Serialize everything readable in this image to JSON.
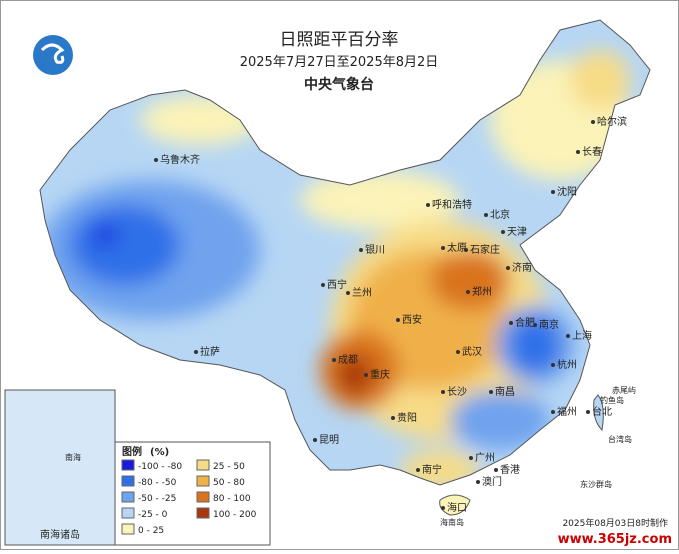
{
  "header": {
    "title": "日照距平百分率",
    "subtitle": "2025年7月27日至2025年8月2日",
    "agency": "中央气象台"
  },
  "cities": [
    "乌鲁木齐",
    "呼和浩特",
    "北京",
    "天津",
    "哈尔滨",
    "长春",
    "沈阳",
    "银川",
    "太原",
    "石家庄",
    "济南",
    "西宁",
    "兰州",
    "郑州",
    "西安",
    "合肥",
    "南京",
    "上海",
    "拉萨",
    "成都",
    "武汉",
    "重庆",
    "杭州",
    "长沙",
    "南昌",
    "贵阳",
    "福州",
    "台北",
    "昆明",
    "南宁",
    "广州",
    "香港",
    "澳门",
    "海口"
  ],
  "islands": [
    "赤尾屿",
    "钓鱼岛",
    "台湾岛",
    "东沙群岛",
    "海南岛",
    "南海"
  ],
  "inset": {
    "label": "南海诸岛"
  },
  "legend": {
    "title": "图例",
    "unit": "(%)",
    "items": [
      {
        "label": "-100 - -80",
        "color": "#1a1adf"
      },
      {
        "label": "-80 - -50",
        "color": "#2f6fe8"
      },
      {
        "label": "-50 - -25",
        "color": "#6fa3ee"
      },
      {
        "label": "-25 - 0",
        "color": "#b6d6f4"
      },
      {
        "label": "0 - 25",
        "color": "#fbf3b8"
      },
      {
        "label": "25 - 50",
        "color": "#f7dc87"
      },
      {
        "label": "50 - 80",
        "color": "#f0b04a"
      },
      {
        "label": "80 - 100",
        "color": "#d9731e"
      },
      {
        "label": "100 - 200",
        "color": "#a8380e"
      }
    ]
  },
  "footer": "2025年08月03日8时制作",
  "watermark": "www.365jz.com"
}
